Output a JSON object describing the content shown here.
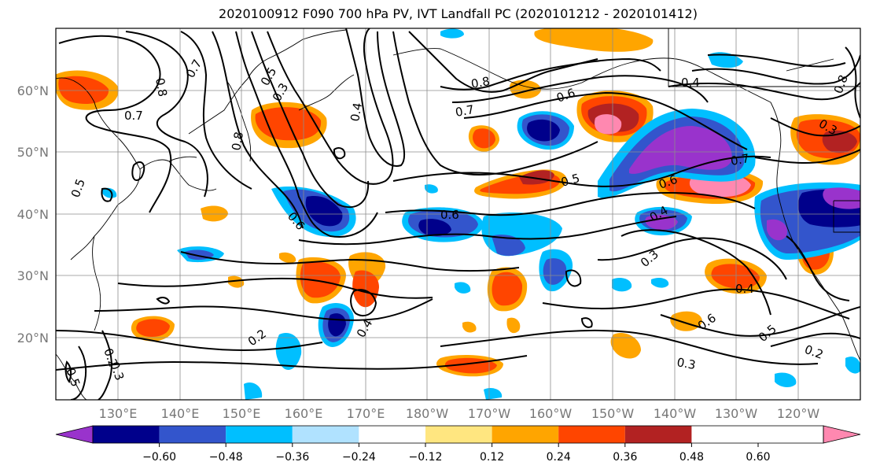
{
  "title": "2020100912 F090 700 hPa PV, IVT Landfall PC (2020101212 - 2020101412)",
  "map": {
    "lat_labels": [
      "20°N",
      "30°N",
      "40°N",
      "50°N",
      "60°N"
    ],
    "lon_labels": [
      "130°E",
      "140°E",
      "150°E",
      "160°E",
      "170°E",
      "180°W",
      "170°W",
      "160°W",
      "150°W",
      "140°W",
      "130°W",
      "120°W"
    ]
  },
  "colorbar": {
    "ticks": [
      "−0.60",
      "−0.48",
      "−0.36",
      "−0.24",
      "−0.12",
      "0.12",
      "0.24",
      "0.36",
      "0.48",
      "0.60"
    ],
    "colors": [
      "#9933cc",
      "#00008b",
      "#3355cc",
      "#00bfff",
      "#b0e2ff",
      "#ffffff",
      "#ffe680",
      "#ffa500",
      "#ff4500",
      "#b22222",
      "#ff88b0"
    ]
  },
  "contour_labels": [
    "0.7",
    "0.5",
    "0.8",
    "0.7",
    "0.5",
    "0.3",
    "0.4",
    "0.8",
    "0.6",
    "0.8",
    "0.7",
    "0.6",
    "0.4",
    "0.8",
    "0.3",
    "0.7",
    "0.6",
    "0.5",
    "0.6",
    "0.4",
    "0.3",
    "0.4",
    "0.6",
    "0.5",
    "0.2",
    "0.3",
    "0.2",
    "0.4",
    "0.2",
    "0.3",
    "0.5"
  ],
  "icons": [
    "colorbar-arrow-left",
    "colorbar-arrow-right"
  ]
}
